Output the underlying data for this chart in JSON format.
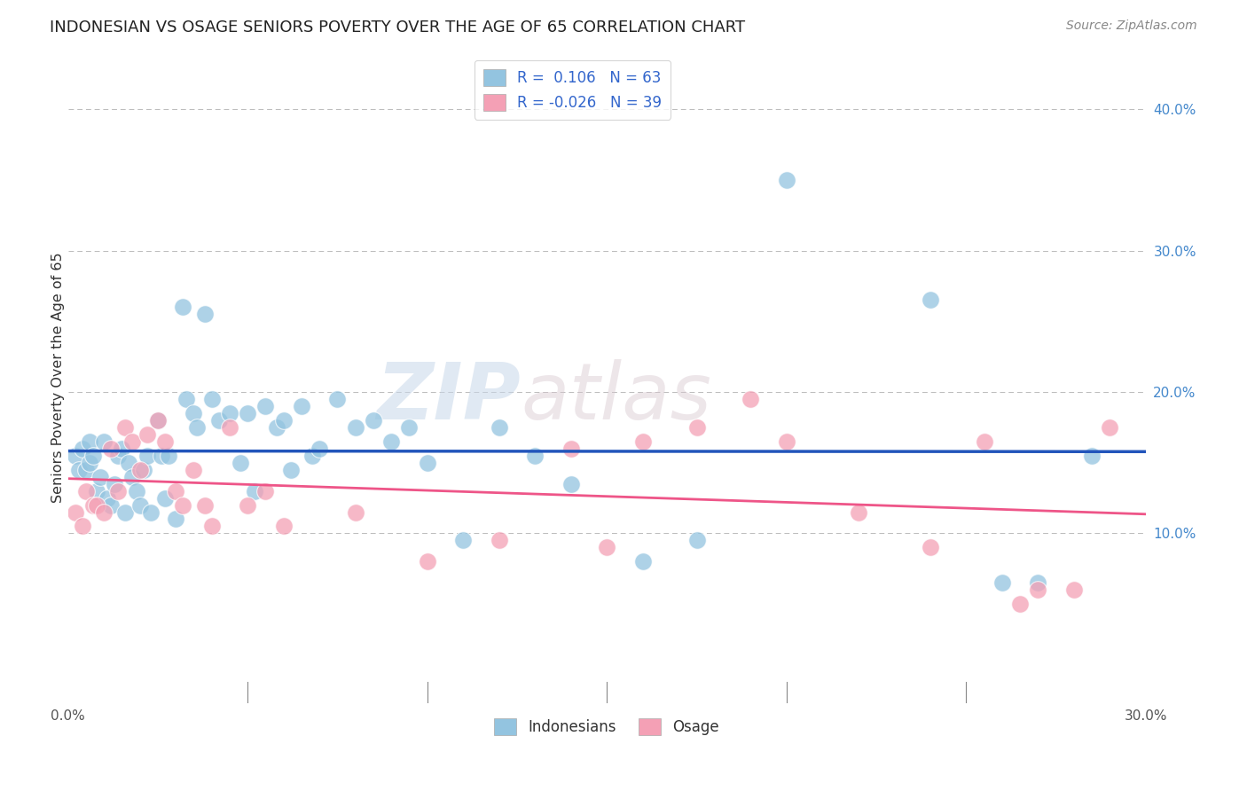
{
  "title": "INDONESIAN VS OSAGE SENIORS POVERTY OVER THE AGE OF 65 CORRELATION CHART",
  "source": "Source: ZipAtlas.com",
  "ylabel": "Seniors Poverty Over the Age of 65",
  "xlim": [
    0,
    0.3
  ],
  "ylim": [
    -0.02,
    0.44
  ],
  "x_tick_positions": [
    0.0,
    0.05,
    0.1,
    0.15,
    0.2,
    0.25,
    0.3
  ],
  "x_tick_labels": [
    "0.0%",
    "",
    "",
    "",
    "",
    "",
    "30.0%"
  ],
  "y_ticks": [
    0.1,
    0.2,
    0.3,
    0.4
  ],
  "y_tick_labels": [
    "10.0%",
    "20.0%",
    "30.0%",
    "40.0%"
  ],
  "R_indonesian": 0.106,
  "N_indonesian": 63,
  "R_osage": -0.026,
  "N_osage": 39,
  "color_indonesian": "#93C4E0",
  "color_osage": "#F4A0B5",
  "line_color_indonesian": "#2255BB",
  "line_color_osage": "#EE5588",
  "watermark_zip": "ZIP",
  "watermark_atlas": "atlas",
  "indonesian_x": [
    0.002,
    0.003,
    0.004,
    0.005,
    0.006,
    0.006,
    0.007,
    0.008,
    0.009,
    0.01,
    0.011,
    0.012,
    0.013,
    0.014,
    0.015,
    0.016,
    0.017,
    0.018,
    0.019,
    0.02,
    0.021,
    0.022,
    0.023,
    0.025,
    0.026,
    0.027,
    0.028,
    0.03,
    0.032,
    0.033,
    0.035,
    0.036,
    0.038,
    0.04,
    0.042,
    0.045,
    0.048,
    0.05,
    0.052,
    0.055,
    0.058,
    0.06,
    0.062,
    0.065,
    0.068,
    0.07,
    0.075,
    0.08,
    0.085,
    0.09,
    0.095,
    0.1,
    0.11,
    0.12,
    0.13,
    0.14,
    0.16,
    0.175,
    0.2,
    0.24,
    0.26,
    0.27,
    0.285
  ],
  "indonesian_y": [
    0.155,
    0.145,
    0.16,
    0.145,
    0.165,
    0.15,
    0.155,
    0.13,
    0.14,
    0.165,
    0.125,
    0.12,
    0.135,
    0.155,
    0.16,
    0.115,
    0.15,
    0.14,
    0.13,
    0.12,
    0.145,
    0.155,
    0.115,
    0.18,
    0.155,
    0.125,
    0.155,
    0.11,
    0.26,
    0.195,
    0.185,
    0.175,
    0.255,
    0.195,
    0.18,
    0.185,
    0.15,
    0.185,
    0.13,
    0.19,
    0.175,
    0.18,
    0.145,
    0.19,
    0.155,
    0.16,
    0.195,
    0.175,
    0.18,
    0.165,
    0.175,
    0.15,
    0.095,
    0.175,
    0.155,
    0.135,
    0.08,
    0.095,
    0.35,
    0.265,
    0.065,
    0.065,
    0.155
  ],
  "osage_x": [
    0.002,
    0.004,
    0.005,
    0.007,
    0.008,
    0.01,
    0.012,
    0.014,
    0.016,
    0.018,
    0.02,
    0.022,
    0.025,
    0.027,
    0.03,
    0.032,
    0.035,
    0.038,
    0.04,
    0.045,
    0.05,
    0.055,
    0.06,
    0.08,
    0.1,
    0.12,
    0.14,
    0.15,
    0.16,
    0.175,
    0.19,
    0.2,
    0.22,
    0.24,
    0.255,
    0.265,
    0.27,
    0.28,
    0.29
  ],
  "osage_y": [
    0.115,
    0.105,
    0.13,
    0.12,
    0.12,
    0.115,
    0.16,
    0.13,
    0.175,
    0.165,
    0.145,
    0.17,
    0.18,
    0.165,
    0.13,
    0.12,
    0.145,
    0.12,
    0.105,
    0.175,
    0.12,
    0.13,
    0.105,
    0.115,
    0.08,
    0.095,
    0.16,
    0.09,
    0.165,
    0.175,
    0.195,
    0.165,
    0.115,
    0.09,
    0.165,
    0.05,
    0.06,
    0.06,
    0.175
  ]
}
